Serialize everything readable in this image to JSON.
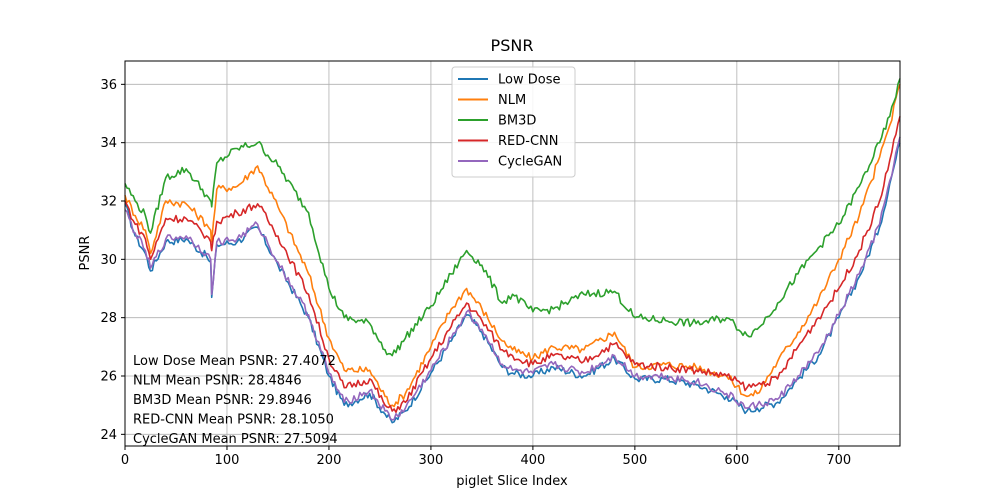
{
  "chart_data": {
    "type": "line",
    "title": "PSNR",
    "xlabel": "piglet Slice Index",
    "ylabel": "PSNR",
    "xlim": [
      0,
      760
    ],
    "ylim": [
      23.6,
      36.8
    ],
    "xticks": [
      0,
      100,
      200,
      300,
      400,
      500,
      600,
      700
    ],
    "yticks": [
      24,
      26,
      28,
      30,
      32,
      34,
      36
    ],
    "grid": true,
    "legend_position": "top-center",
    "series": [
      {
        "name": "Low Dose",
        "color": "#1f77b4",
        "x": [
          0,
          10,
          20,
          25,
          40,
          60,
          80,
          84,
          85,
          90,
          110,
          130,
          150,
          180,
          200,
          215,
          240,
          255,
          262,
          275,
          300,
          320,
          335,
          350,
          370,
          380,
          400,
          420,
          450,
          480,
          500,
          530,
          560,
          590,
          610,
          620,
          640,
          660,
          680,
          700,
          720,
          740,
          750,
          760
        ],
        "y": [
          31.9,
          30.8,
          30.2,
          29.6,
          30.6,
          30.7,
          30.1,
          29.9,
          28.7,
          30.5,
          30.6,
          31.1,
          29.8,
          28.0,
          26.0,
          25.0,
          25.4,
          24.7,
          24.4,
          24.8,
          26.1,
          27.2,
          28.1,
          27.5,
          26.3,
          26.1,
          26.0,
          26.3,
          26.0,
          26.6,
          25.9,
          25.9,
          25.7,
          25.3,
          24.8,
          24.9,
          25.1,
          25.9,
          26.7,
          28.0,
          29.4,
          31.1,
          32.6,
          34.0
        ]
      },
      {
        "name": "NLM",
        "color": "#ff7f0e",
        "x": [
          0,
          10,
          20,
          25,
          40,
          60,
          80,
          84,
          85,
          90,
          110,
          130,
          150,
          180,
          200,
          215,
          240,
          255,
          262,
          275,
          300,
          320,
          335,
          350,
          370,
          380,
          400,
          420,
          450,
          480,
          500,
          530,
          560,
          590,
          610,
          620,
          640,
          660,
          680,
          700,
          720,
          740,
          750,
          760
        ],
        "y": [
          32.2,
          31.5,
          31.0,
          30.2,
          32.0,
          31.9,
          31.2,
          31.0,
          30.6,
          32.4,
          32.5,
          33.2,
          31.8,
          29.5,
          27.3,
          26.2,
          26.2,
          25.3,
          25.0,
          25.4,
          27.0,
          28.3,
          29.0,
          28.3,
          27.2,
          26.9,
          26.6,
          27.0,
          26.9,
          27.5,
          26.3,
          26.4,
          26.3,
          26.0,
          25.3,
          25.4,
          26.5,
          27.5,
          28.6,
          30.0,
          31.5,
          33.5,
          34.6,
          36.0
        ]
      },
      {
        "name": "BM3D",
        "color": "#2ca02c",
        "x": [
          0,
          10,
          20,
          25,
          40,
          60,
          80,
          84,
          85,
          90,
          110,
          130,
          150,
          180,
          200,
          215,
          240,
          255,
          262,
          275,
          300,
          320,
          335,
          350,
          370,
          380,
          400,
          420,
          450,
          480,
          500,
          530,
          560,
          590,
          610,
          620,
          640,
          660,
          680,
          700,
          720,
          740,
          750,
          760
        ],
        "y": [
          32.6,
          32.0,
          31.5,
          30.9,
          32.8,
          33.1,
          32.2,
          32.0,
          31.8,
          33.3,
          33.8,
          34.0,
          33.2,
          31.6,
          29.0,
          28.0,
          27.8,
          26.9,
          26.7,
          27.3,
          28.4,
          29.5,
          30.3,
          29.8,
          28.5,
          28.8,
          28.2,
          28.3,
          28.8,
          28.9,
          28.0,
          27.9,
          27.8,
          28.0,
          27.4,
          27.6,
          28.5,
          29.5,
          30.4,
          31.2,
          32.5,
          34.0,
          34.9,
          36.2
        ]
      },
      {
        "name": "RED-CNN",
        "color": "#d62728",
        "x": [
          0,
          10,
          20,
          25,
          40,
          60,
          80,
          84,
          85,
          90,
          110,
          130,
          150,
          180,
          200,
          215,
          240,
          255,
          262,
          275,
          300,
          320,
          335,
          350,
          370,
          380,
          400,
          420,
          450,
          480,
          500,
          530,
          560,
          590,
          610,
          620,
          640,
          660,
          680,
          700,
          720,
          740,
          750,
          760
        ],
        "y": [
          32.0,
          31.2,
          30.7,
          30.0,
          31.4,
          31.4,
          30.8,
          30.6,
          30.3,
          31.3,
          31.6,
          31.9,
          30.8,
          28.8,
          26.6,
          25.6,
          25.9,
          25.0,
          24.8,
          25.1,
          26.6,
          27.7,
          28.5,
          27.9,
          26.9,
          26.7,
          26.4,
          26.7,
          26.5,
          27.1,
          26.4,
          26.3,
          26.2,
          26.0,
          25.6,
          25.7,
          25.9,
          27.0,
          28.0,
          29.0,
          30.3,
          32.0,
          33.4,
          34.9
        ]
      },
      {
        "name": "CycleGAN",
        "color": "#9467bd",
        "x": [
          0,
          10,
          20,
          25,
          40,
          60,
          80,
          84,
          85,
          90,
          110,
          130,
          150,
          180,
          200,
          215,
          240,
          255,
          262,
          275,
          300,
          320,
          335,
          350,
          370,
          380,
          400,
          420,
          450,
          480,
          500,
          530,
          560,
          590,
          610,
          620,
          640,
          660,
          680,
          700,
          720,
          740,
          750,
          760
        ],
        "y": [
          31.7,
          30.9,
          30.3,
          29.7,
          30.7,
          30.8,
          30.2,
          30.0,
          28.8,
          30.6,
          30.7,
          31.2,
          29.9,
          28.1,
          26.1,
          25.1,
          25.5,
          24.8,
          24.5,
          24.9,
          26.2,
          27.3,
          28.2,
          27.6,
          26.4,
          26.2,
          26.1,
          26.4,
          26.1,
          26.7,
          26.0,
          26.0,
          25.8,
          25.4,
          24.9,
          25.0,
          25.2,
          26.0,
          26.8,
          28.1,
          29.5,
          31.2,
          32.7,
          34.2
        ]
      }
    ],
    "annotations": [
      "Low Dose Mean PSNR: 27.4072",
      "NLM Mean PSNR: 28.4846",
      "BM3D Mean PSNR: 29.8946",
      "RED-CNN Mean PSNR: 28.1050",
      "CycleGAN Mean PSNR: 27.5094"
    ]
  }
}
